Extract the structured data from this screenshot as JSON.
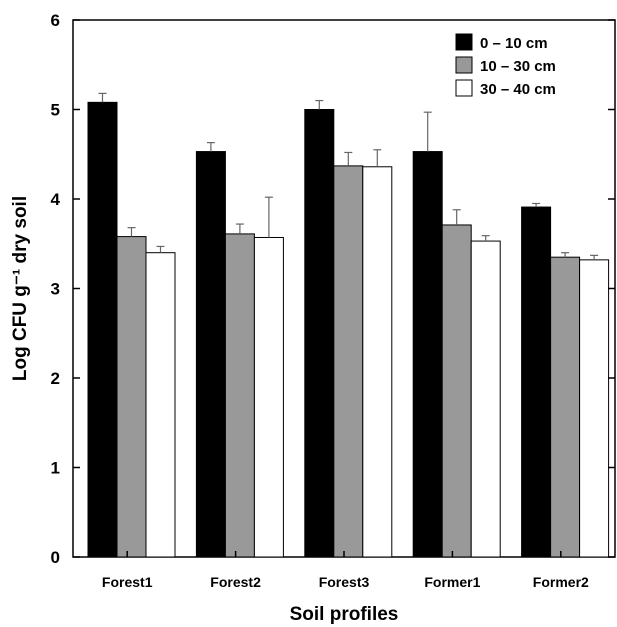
{
  "chart_data": {
    "type": "bar",
    "title": "",
    "xlabel": "Soil profiles",
    "ylabel": "Log CFU g⁻¹ dry soil",
    "ylim": [
      0,
      6
    ],
    "yticks": [
      "0",
      "1",
      "2",
      "3",
      "4",
      "5",
      "6"
    ],
    "categories": [
      "Forest1",
      "Forest2",
      "Forest3",
      "Former1",
      "Former2"
    ],
    "legend_position": "top-right",
    "grid": false,
    "series": [
      {
        "name": "0 – 10 cm",
        "color": "#000000",
        "values": [
          5.08,
          4.53,
          5.0,
          4.53,
          3.91
        ],
        "errors": [
          0.1,
          0.1,
          0.1,
          0.44,
          0.04
        ]
      },
      {
        "name": "10 – 30 cm",
        "color": "#999999",
        "values": [
          3.58,
          3.61,
          4.37,
          3.71,
          3.35
        ],
        "errors": [
          0.1,
          0.11,
          0.15,
          0.17,
          0.05
        ]
      },
      {
        "name": "30 – 40 cm",
        "color": "#ffffff",
        "values": [
          3.4,
          3.57,
          4.36,
          3.53,
          3.32
        ],
        "errors": [
          0.07,
          0.45,
          0.19,
          0.06,
          0.05
        ]
      }
    ]
  }
}
